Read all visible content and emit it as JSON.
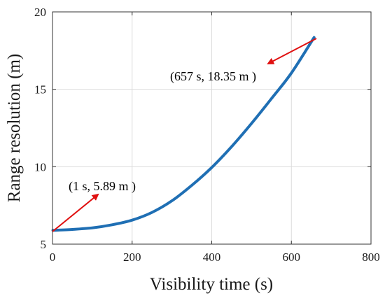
{
  "chart_data": {
    "type": "line",
    "xlabel": "Visibility time (s)",
    "ylabel": "Range resolution (m)",
    "xlim": [
      0,
      800
    ],
    "ylim": [
      5,
      20
    ],
    "xticks": [
      0,
      200,
      400,
      600,
      800
    ],
    "yticks": [
      5,
      10,
      15,
      20
    ],
    "grid": true,
    "series": [
      {
        "color": "#1f6fb4",
        "x": [
          1,
          50,
          100,
          150,
          200,
          250,
          300,
          350,
          400,
          450,
          500,
          550,
          600,
          657
        ],
        "y": [
          5.89,
          5.95,
          6.05,
          6.25,
          6.55,
          7.05,
          7.8,
          8.8,
          9.95,
          11.3,
          12.8,
          14.4,
          16.05,
          18.35
        ]
      }
    ],
    "annotations": [
      {
        "text": "(1 s, 5.89 m )",
        "point": [
          1,
          5.89
        ],
        "arrow_color": "#e01010"
      },
      {
        "text": "(657 s, 18.35 m )",
        "point": [
          657,
          18.35
        ],
        "arrow_color": "#e01010"
      }
    ]
  }
}
